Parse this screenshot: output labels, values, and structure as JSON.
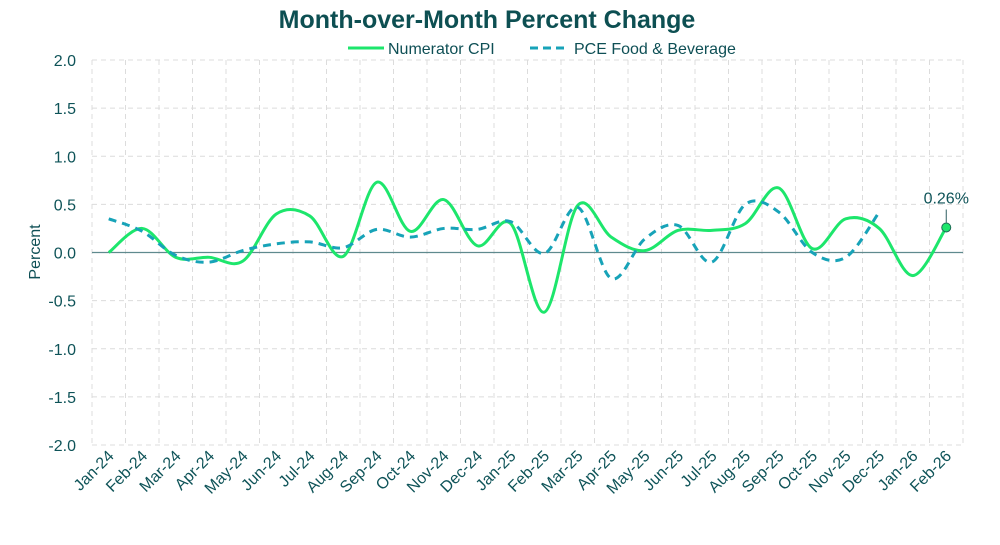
{
  "chart_data": {
    "type": "line",
    "title": "Month-over-Month Percent Change",
    "xlabel": "",
    "ylabel": "Percent",
    "ylim": [
      -2.0,
      2.0
    ],
    "yticks": [
      "2.0",
      "1.5",
      "1.0",
      "0.5",
      "0.0",
      "-0.5",
      "-1.0",
      "-1.5",
      "-2.0"
    ],
    "grid": true,
    "legend": "top-center",
    "categories": [
      "Jan-24",
      "Feb-24",
      "Mar-24",
      "Apr-24",
      "May-24",
      "Jun-24",
      "Jul-24",
      "Aug-24",
      "Sep-24",
      "Oct-24",
      "Nov-24",
      "Dec-24",
      "Jan-25",
      "Feb-25",
      "Mar-25",
      "Apr-25",
      "May-25",
      "Jun-25",
      "Jul-25",
      "Aug-25",
      "Sep-25",
      "Oct-25",
      "Nov-25",
      "Dec-25",
      "Jan-26",
      "Feb-26"
    ],
    "series": [
      {
        "name": "Numerator CPI",
        "color": "#1de66c",
        "style": "solid",
        "values": [
          0.0,
          0.25,
          -0.05,
          -0.05,
          -0.09,
          0.4,
          0.38,
          -0.04,
          0.73,
          0.22,
          0.55,
          0.07,
          0.3,
          -0.62,
          0.49,
          0.16,
          0.02,
          0.23,
          0.23,
          0.3,
          0.67,
          0.04,
          0.35,
          0.25,
          -0.24,
          0.26
        ]
      },
      {
        "name": "PCE Food & Beverage",
        "color": "#17a3b8",
        "style": "dashed",
        "values": [
          0.35,
          0.22,
          -0.03,
          -0.1,
          0.02,
          0.09,
          0.11,
          0.05,
          0.24,
          0.16,
          0.25,
          0.24,
          0.32,
          -0.01,
          0.47,
          -0.27,
          0.14,
          0.28,
          -0.1,
          0.5,
          0.42,
          0.0,
          -0.05,
          0.42,
          null,
          null
        ]
      }
    ],
    "annotation": {
      "label": "0.26%",
      "category": "Feb-26",
      "series": "Numerator CPI"
    }
  }
}
